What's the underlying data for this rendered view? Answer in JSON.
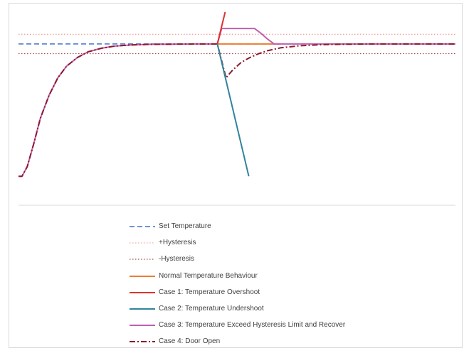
{
  "chart_data": {
    "type": "line",
    "title": "",
    "xlabel": "",
    "ylabel": "",
    "xlim": [
      0,
      100
    ],
    "ylim": [
      0,
      100
    ],
    "grid": false,
    "legend_position": "bottom",
    "series": [
      {
        "name": "Set Temperature",
        "color": "#4472C4",
        "dash": "dashed",
        "x": [
          0,
          100
        ],
        "y": [
          83.5,
          83.5
        ]
      },
      {
        "name": "+Hysteresis",
        "color": "#F4A6A6",
        "dash": "dotted",
        "x": [
          0,
          100
        ],
        "y": [
          88.5,
          88.5
        ]
      },
      {
        "name": "-Hysteresis",
        "color": "#A84848",
        "dash": "dotted",
        "x": [
          0,
          100
        ],
        "y": [
          78.5,
          78.5
        ]
      },
      {
        "name": "Normal Temperature Behaviour",
        "color": "#ED7D31",
        "dash": "solid",
        "x": [
          45.5,
          60
        ],
        "y": [
          83.5,
          83.5
        ]
      },
      {
        "name": "Case 1: Temperature Overshoot",
        "color": "#E03030",
        "dash": "solid",
        "x": [
          45.5,
          47.3
        ],
        "y": [
          83.5,
          100
        ]
      },
      {
        "name": "Case 2: Temperature Undershoot",
        "color": "#31849B",
        "dash": "solid",
        "x": [
          45.5,
          52.7
        ],
        "y": [
          83.5,
          15
        ]
      },
      {
        "name": "Case 3: Temperature Exceed Hysteresis Limit and Recover",
        "color": "#C060B0",
        "dash": "solid",
        "x": [
          0,
          0.8,
          2,
          3.5,
          5,
          7,
          9,
          11,
          13.5,
          16,
          19,
          22,
          26,
          30,
          35,
          40,
          45.5,
          46.5,
          54,
          55.5,
          57,
          58.5,
          100
        ],
        "y": [
          15,
          15,
          20,
          32,
          45,
          57,
          66,
          72,
          76.5,
          79.5,
          81.3,
          82.4,
          83,
          83.3,
          83.4,
          83.5,
          83.5,
          91.5,
          91.5,
          89,
          86,
          83.5,
          83.5
        ]
      },
      {
        "name": "Case 4: Door Open",
        "color": "#8B1A2B",
        "dash": "dashdot",
        "x": [
          0,
          0.8,
          2,
          3.5,
          5,
          7,
          9,
          11,
          13.5,
          16,
          19,
          22,
          26,
          30,
          35,
          40,
          45.5,
          47.5,
          49,
          51,
          53,
          55,
          57,
          60,
          64,
          70,
          80,
          100
        ],
        "y": [
          15,
          15,
          20,
          32,
          45,
          57,
          66,
          72,
          76.5,
          79.5,
          81.3,
          82.4,
          83,
          83.3,
          83.4,
          83.5,
          83.5,
          66,
          70,
          74,
          76.5,
          78.5,
          80,
          81.5,
          82.5,
          83.2,
          83.5,
          83.5
        ]
      }
    ]
  }
}
